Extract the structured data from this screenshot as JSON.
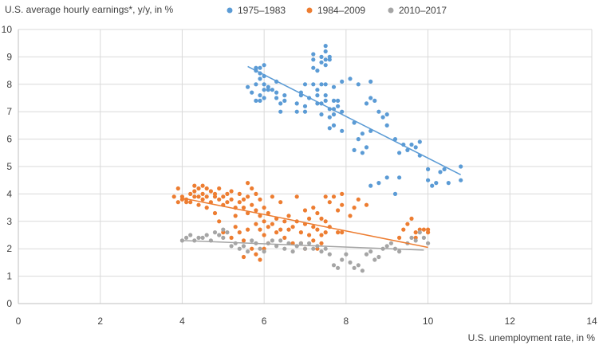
{
  "chart_data": {
    "type": "scatter",
    "title": "",
    "ylabel": "U.S. average hourly earnings*, y/y, in %",
    "xlabel": "U.S. unemployment rate, in %",
    "xlim": [
      0,
      14
    ],
    "ylim": [
      0,
      10
    ],
    "x_ticks": [
      "0",
      "2",
      "4",
      "6",
      "8",
      "10",
      "12",
      "14"
    ],
    "y_ticks": [
      "0",
      "1",
      "2",
      "3",
      "4",
      "5",
      "6",
      "7",
      "8",
      "9",
      "10"
    ],
    "grid": "on",
    "legend_placement": "top",
    "series": [
      {
        "name": "1975–1983",
        "color": "#5b9bd5",
        "trendline": [
          [
            5.6,
            8.65
          ],
          [
            10.8,
            4.7
          ]
        ],
        "points": [
          [
            5.6,
            7.9
          ],
          [
            5.7,
            7.7
          ],
          [
            5.8,
            8.0
          ],
          [
            5.8,
            8.5
          ],
          [
            5.8,
            8.6
          ],
          [
            5.9,
            8.6
          ],
          [
            5.9,
            8.4
          ],
          [
            5.9,
            8.2
          ],
          [
            5.9,
            7.6
          ],
          [
            6.0,
            8.7
          ],
          [
            6.0,
            8.3
          ],
          [
            6.0,
            8.0
          ],
          [
            6.0,
            7.8
          ],
          [
            6.0,
            7.5
          ],
          [
            6.1,
            7.9
          ],
          [
            6.1,
            7.8
          ],
          [
            5.8,
            7.4
          ],
          [
            5.9,
            7.4
          ],
          [
            6.2,
            7.8
          ],
          [
            6.3,
            7.7
          ],
          [
            6.3,
            7.5
          ],
          [
            6.3,
            8.1
          ],
          [
            6.4,
            7.3
          ],
          [
            6.4,
            7.0
          ],
          [
            6.5,
            7.6
          ],
          [
            6.5,
            7.4
          ],
          [
            6.8,
            7.3
          ],
          [
            6.8,
            7.0
          ],
          [
            6.9,
            7.7
          ],
          [
            6.9,
            7.6
          ],
          [
            7.0,
            8.0
          ],
          [
            7.0,
            7.0
          ],
          [
            7.0,
            7.2
          ],
          [
            7.1,
            7.5
          ],
          [
            7.2,
            9.1
          ],
          [
            7.2,
            8.9
          ],
          [
            7.2,
            8.6
          ],
          [
            7.2,
            8.0
          ],
          [
            7.3,
            8.5
          ],
          [
            7.3,
            7.8
          ],
          [
            7.3,
            7.6
          ],
          [
            7.4,
            9.0
          ],
          [
            7.4,
            8.8
          ],
          [
            7.4,
            8.0
          ],
          [
            7.4,
            7.3
          ],
          [
            7.5,
            9.4
          ],
          [
            7.5,
            9.2
          ],
          [
            7.5,
            8.9
          ],
          [
            7.5,
            8.7
          ],
          [
            7.5,
            8.0
          ],
          [
            7.5,
            7.6
          ],
          [
            7.5,
            7.4
          ],
          [
            7.6,
            9.0
          ],
          [
            7.6,
            8.9
          ],
          [
            7.6,
            7.1
          ],
          [
            7.6,
            6.8
          ],
          [
            7.7,
            7.9
          ],
          [
            7.7,
            7.4
          ],
          [
            7.7,
            6.9
          ],
          [
            7.7,
            6.5
          ],
          [
            7.8,
            7.4
          ],
          [
            7.8,
            7.2
          ],
          [
            7.9,
            8.1
          ],
          [
            7.9,
            7.0
          ],
          [
            7.9,
            6.3
          ],
          [
            7.4,
            6.9
          ],
          [
            7.6,
            6.4
          ],
          [
            7.3,
            7.3
          ],
          [
            7.7,
            7.1
          ],
          [
            8.1,
            8.2
          ],
          [
            8.2,
            6.6
          ],
          [
            8.2,
            5.6
          ],
          [
            8.3,
            8.0
          ],
          [
            8.3,
            6.0
          ],
          [
            8.4,
            6.2
          ],
          [
            8.4,
            5.5
          ],
          [
            8.5,
            7.3
          ],
          [
            8.5,
            5.7
          ],
          [
            8.6,
            8.1
          ],
          [
            8.6,
            7.5
          ],
          [
            8.6,
            6.3
          ],
          [
            8.6,
            4.3
          ],
          [
            8.7,
            7.4
          ],
          [
            8.8,
            4.4
          ],
          [
            8.8,
            7.0
          ],
          [
            8.9,
            6.8
          ],
          [
            9.0,
            6.5
          ],
          [
            9.0,
            6.9
          ],
          [
            9.0,
            4.6
          ],
          [
            9.2,
            6.0
          ],
          [
            9.3,
            5.5
          ],
          [
            9.4,
            5.8
          ],
          [
            9.5,
            5.6
          ],
          [
            9.6,
            5.8
          ],
          [
            9.7,
            5.7
          ],
          [
            9.8,
            5.9
          ],
          [
            9.8,
            5.4
          ],
          [
            10.0,
            4.9
          ],
          [
            10.0,
            4.5
          ],
          [
            10.2,
            4.4
          ],
          [
            10.3,
            4.8
          ],
          [
            10.4,
            4.9
          ],
          [
            10.5,
            4.4
          ],
          [
            10.8,
            5.0
          ],
          [
            10.8,
            4.5
          ],
          [
            9.2,
            4.0
          ],
          [
            9.3,
            4.6
          ],
          [
            10.1,
            4.3
          ]
        ]
      },
      {
        "name": "1984–2009",
        "color": "#ed7d31",
        "trendline": [
          [
            4.0,
            3.85
          ],
          [
            10.0,
            2.05
          ]
        ],
        "points": [
          [
            3.8,
            3.9
          ],
          [
            3.9,
            4.2
          ],
          [
            3.9,
            3.7
          ],
          [
            4.0,
            3.9
          ],
          [
            4.0,
            3.8
          ],
          [
            4.1,
            3.8
          ],
          [
            4.1,
            3.7
          ],
          [
            4.2,
            4.0
          ],
          [
            4.2,
            3.7
          ],
          [
            4.3,
            4.1
          ],
          [
            4.3,
            3.9
          ],
          [
            4.3,
            4.3
          ],
          [
            4.4,
            4.2
          ],
          [
            4.4,
            3.9
          ],
          [
            4.4,
            3.6
          ],
          [
            4.5,
            4.3
          ],
          [
            4.5,
            4.0
          ],
          [
            4.5,
            3.8
          ],
          [
            4.6,
            4.2
          ],
          [
            4.6,
            3.9
          ],
          [
            4.6,
            3.5
          ],
          [
            4.7,
            4.1
          ],
          [
            4.7,
            3.7
          ],
          [
            4.8,
            4.0
          ],
          [
            4.8,
            3.9
          ],
          [
            4.9,
            4.2
          ],
          [
            4.9,
            3.8
          ],
          [
            5.0,
            3.9
          ],
          [
            5.0,
            3.6
          ],
          [
            5.1,
            4.0
          ],
          [
            5.1,
            3.7
          ],
          [
            5.2,
            4.1
          ],
          [
            5.2,
            3.8
          ],
          [
            5.3,
            3.5
          ],
          [
            5.3,
            3.2
          ],
          [
            5.4,
            4.0
          ],
          [
            5.4,
            3.7
          ],
          [
            5.5,
            3.5
          ],
          [
            5.5,
            3.8
          ],
          [
            5.6,
            4.4
          ],
          [
            5.6,
            3.9
          ],
          [
            5.6,
            3.3
          ],
          [
            5.7,
            4.2
          ],
          [
            5.7,
            3.6
          ],
          [
            5.8,
            4.0
          ],
          [
            5.8,
            3.4
          ],
          [
            5.8,
            2.9
          ],
          [
            5.9,
            3.8
          ],
          [
            5.9,
            3.2
          ],
          [
            5.9,
            2.7
          ],
          [
            6.0,
            3.5
          ],
          [
            6.0,
            3.0
          ],
          [
            6.0,
            2.5
          ],
          [
            6.1,
            3.3
          ],
          [
            6.1,
            2.8
          ],
          [
            6.2,
            3.9
          ],
          [
            6.2,
            2.9
          ],
          [
            6.3,
            3.1
          ],
          [
            6.3,
            2.6
          ],
          [
            6.4,
            3.7
          ],
          [
            6.4,
            2.7
          ],
          [
            6.5,
            3.0
          ],
          [
            6.5,
            2.4
          ],
          [
            6.6,
            3.2
          ],
          [
            6.6,
            2.7
          ],
          [
            6.7,
            2.8
          ],
          [
            6.7,
            2.2
          ],
          [
            5.4,
            2.6
          ],
          [
            5.5,
            2.3
          ],
          [
            5.6,
            2.7
          ],
          [
            5.7,
            2.0
          ],
          [
            5.8,
            1.8
          ],
          [
            5.9,
            1.6
          ],
          [
            6.0,
            2.0
          ],
          [
            5.5,
            1.7
          ],
          [
            6.1,
            2.2
          ],
          [
            5.2,
            2.4
          ],
          [
            5.3,
            2.8
          ],
          [
            6.8,
            3.9
          ],
          [
            6.8,
            3.0
          ],
          [
            6.9,
            2.6
          ],
          [
            6.9,
            2.2
          ],
          [
            7.0,
            3.4
          ],
          [
            7.0,
            2.9
          ],
          [
            7.0,
            2.0
          ],
          [
            7.1,
            3.1
          ],
          [
            7.1,
            2.5
          ],
          [
            7.2,
            3.5
          ],
          [
            7.2,
            2.8
          ],
          [
            7.2,
            2.3
          ],
          [
            7.3,
            3.3
          ],
          [
            7.3,
            2.7
          ],
          [
            7.4,
            3.1
          ],
          [
            7.4,
            2.5
          ],
          [
            7.5,
            3.0
          ],
          [
            7.5,
            2.6
          ],
          [
            7.5,
            3.9
          ],
          [
            7.6,
            3.7
          ],
          [
            7.6,
            2.8
          ],
          [
            7.8,
            3.4
          ],
          [
            7.8,
            2.6
          ],
          [
            7.9,
            4.0
          ],
          [
            7.9,
            3.6
          ],
          [
            7.9,
            2.6
          ],
          [
            8.2,
            3.5
          ],
          [
            8.1,
            3.2
          ],
          [
            7.7,
            3.9
          ],
          [
            7.4,
            2.2
          ],
          [
            7.3,
            2.0
          ],
          [
            9.3,
            2.4
          ],
          [
            9.4,
            2.7
          ],
          [
            9.5,
            2.9
          ],
          [
            9.6,
            3.1
          ],
          [
            9.7,
            2.6
          ],
          [
            9.8,
            2.7
          ],
          [
            9.9,
            2.7
          ],
          [
            10.0,
            2.6
          ],
          [
            10.0,
            2.7
          ],
          [
            9.7,
            2.4
          ],
          [
            8.5,
            3.6
          ],
          [
            8.3,
            3.8
          ],
          [
            5.0,
            2.6
          ],
          [
            4.9,
            3.0
          ],
          [
            4.8,
            3.3
          ]
        ]
      },
      {
        "name": "2010–2017",
        "color": "#a5a5a5",
        "trendline": [
          [
            4.0,
            2.3
          ],
          [
            9.9,
            1.95
          ]
        ],
        "points": [
          [
            4.0,
            2.3
          ],
          [
            4.1,
            2.4
          ],
          [
            4.2,
            2.5
          ],
          [
            4.3,
            2.3
          ],
          [
            4.4,
            2.4
          ],
          [
            4.5,
            2.4
          ],
          [
            4.6,
            2.5
          ],
          [
            4.7,
            2.3
          ],
          [
            4.8,
            2.6
          ],
          [
            4.9,
            2.5
          ],
          [
            5.0,
            2.7
          ],
          [
            5.0,
            2.4
          ],
          [
            5.1,
            2.6
          ],
          [
            5.2,
            2.1
          ],
          [
            5.3,
            2.2
          ],
          [
            5.4,
            2.0
          ],
          [
            5.5,
            2.1
          ],
          [
            5.6,
            1.9
          ],
          [
            5.7,
            2.3
          ],
          [
            5.8,
            2.2
          ],
          [
            5.9,
            2.0
          ],
          [
            6.0,
            1.9
          ],
          [
            6.1,
            2.2
          ],
          [
            6.2,
            2.3
          ],
          [
            6.3,
            2.1
          ],
          [
            6.4,
            2.3
          ],
          [
            6.5,
            2.0
          ],
          [
            6.6,
            2.2
          ],
          [
            6.7,
            1.9
          ],
          [
            6.8,
            2.1
          ],
          [
            6.9,
            2.2
          ],
          [
            7.0,
            2.0
          ],
          [
            7.1,
            2.2
          ],
          [
            7.2,
            2.0
          ],
          [
            7.3,
            2.1
          ],
          [
            7.4,
            1.9
          ],
          [
            7.5,
            2.0
          ],
          [
            7.6,
            1.8
          ],
          [
            7.7,
            1.4
          ],
          [
            7.8,
            1.3
          ],
          [
            7.9,
            1.6
          ],
          [
            8.0,
            1.8
          ],
          [
            8.1,
            1.5
          ],
          [
            8.2,
            1.3
          ],
          [
            8.3,
            1.4
          ],
          [
            8.4,
            1.2
          ],
          [
            8.5,
            1.8
          ],
          [
            8.6,
            1.9
          ],
          [
            8.7,
            1.6
          ],
          [
            8.8,
            1.7
          ],
          [
            8.9,
            2.0
          ],
          [
            9.0,
            2.1
          ],
          [
            9.1,
            2.2
          ],
          [
            9.2,
            2.0
          ],
          [
            9.3,
            1.9
          ],
          [
            9.5,
            2.2
          ],
          [
            9.6,
            2.4
          ],
          [
            9.7,
            2.3
          ],
          [
            9.8,
            2.6
          ],
          [
            9.9,
            2.4
          ],
          [
            10.0,
            2.2
          ]
        ]
      }
    ]
  }
}
